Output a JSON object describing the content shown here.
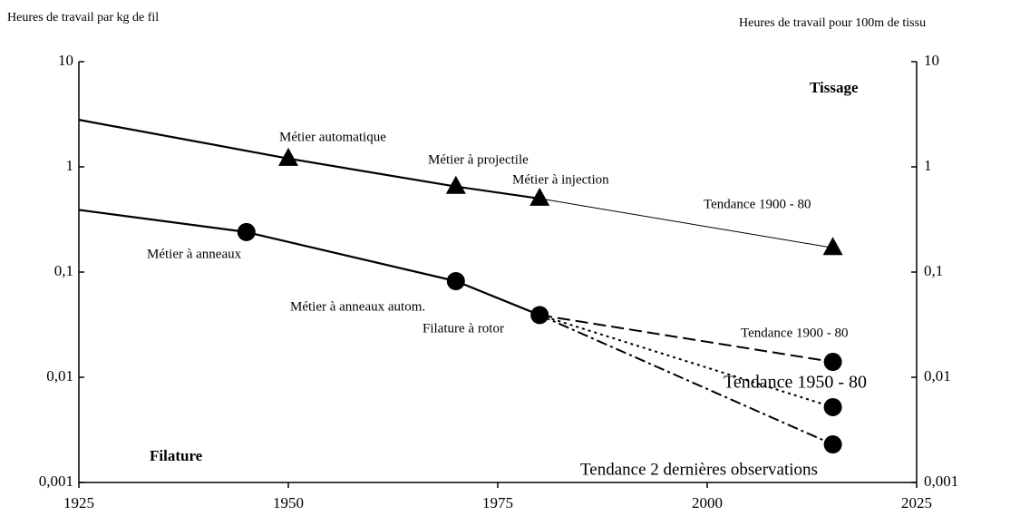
{
  "chart_data": {
    "type": "line",
    "ylabel": "Heures de travail par kg de fil",
    "y2label": "Heures de travail pour 100m de tissu",
    "xlim": [
      1925,
      2025
    ],
    "xticks": [
      1925,
      1950,
      1975,
      2000,
      2025
    ],
    "ylim": [
      0.001,
      10
    ],
    "yticks": [
      {
        "value": 0.001,
        "label": "0,001"
      },
      {
        "value": 0.01,
        "label": "0,01"
      },
      {
        "value": 0.1,
        "label": "0,1"
      },
      1,
      10
    ],
    "y2lim": [
      0.001,
      10
    ],
    "y2ticks": [
      {
        "value": 0.001,
        "label": "0,001"
      },
      {
        "value": 0.01,
        "label": "0,01"
      },
      {
        "value": 0.1,
        "label": "0,1"
      },
      1,
      10
    ],
    "log_scale": true,
    "color": "#000000",
    "series": [
      {
        "x": [
          1925,
          1950,
          1970,
          1980,
          2015
        ],
        "values": [
          2.8,
          1.2,
          0.65,
          0.5,
          0.17
        ],
        "marker": "triangle",
        "markers": [
          false,
          true,
          true,
          true,
          true
        ],
        "segment_styles": [
          "solid",
          "solid",
          "solid",
          "thin"
        ]
      },
      {
        "x": [
          1925,
          1945,
          1970,
          1980
        ],
        "values": [
          0.39,
          0.24,
          0.082,
          0.039
        ],
        "marker": "circle",
        "markers": [
          false,
          true,
          true,
          true
        ],
        "segment_styles": [
          "solid",
          "solid",
          "solid"
        ]
      },
      {
        "x": [
          2015
        ],
        "values": [
          0.014
        ],
        "marker": "circle",
        "linestyle": "dashed"
      },
      {
        "x": [
          2015
        ],
        "values": [
          0.0052
        ],
        "marker": "circle",
        "linestyle": "dotted"
      },
      {
        "x": [
          2015
        ],
        "values": [
          0.0023
        ],
        "marker": "circle",
        "linestyle": "dashdot"
      }
    ],
    "labels": [
      "Tissage",
      "Filature"
    ],
    "annotations": [
      "Métier automatique",
      "Métier à projectile",
      "Métier à injection",
      "Tendance 1900 - 80",
      "Métier à anneaux",
      "Métier à anneaux autom.",
      "Filature à rotor",
      "Tendance 1900 - 80",
      "Tendance 1950 - 80",
      "Tendance 2 dernières observations"
    ]
  }
}
